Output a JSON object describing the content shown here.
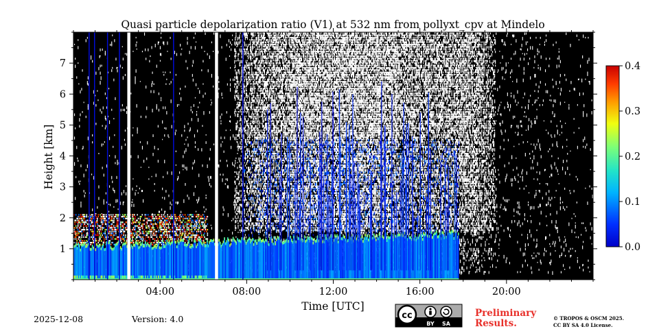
{
  "chart_data": {
    "type": "heatmap",
    "title": "Quasi particle depolarization ratio (V1) at 532 nm from pollyxt_cpv at Mindelo",
    "xlabel": "Time [UTC]",
    "ylabel": "Height [km]",
    "xlim": [
      0,
      24
    ],
    "ylim": [
      0,
      8
    ],
    "x_ticks": [
      {
        "value": 4,
        "label": "04:00"
      },
      {
        "value": 8,
        "label": "08:00"
      },
      {
        "value": 12,
        "label": "12:00"
      },
      {
        "value": 16,
        "label": "16:00"
      },
      {
        "value": 20,
        "label": "20:00"
      }
    ],
    "y_ticks": [
      {
        "value": 1,
        "label": "1"
      },
      {
        "value": 2,
        "label": "2"
      },
      {
        "value": 3,
        "label": "3"
      },
      {
        "value": 4,
        "label": "4"
      },
      {
        "value": 5,
        "label": "5"
      },
      {
        "value": 6,
        "label": "6"
      },
      {
        "value": 7,
        "label": "7"
      }
    ],
    "colorbar": {
      "min": 0.0,
      "max": 0.4,
      "ticks": [
        {
          "value": 0.0,
          "label": "0.0"
        },
        {
          "value": 0.1,
          "label": "0.1"
        },
        {
          "value": 0.2,
          "label": "0.2"
        },
        {
          "value": 0.3,
          "label": "0.3"
        },
        {
          "value": 0.4,
          "label": "0.4"
        }
      ],
      "colormap": "jet"
    },
    "background_color": "#000000",
    "no_signal_gaps_utc": [
      2.55,
      6.6
    ],
    "aerosol_layer": {
      "top_km_start": 1.05,
      "top_km_end": 1.45,
      "end_utc": 17.8,
      "typical_value": 0.08
    },
    "elevated_layer": {
      "start_utc": 0,
      "end_utc": 6.2,
      "base_km": 1.1,
      "top_km": 2.1
    },
    "cloud_region": {
      "start_utc": 7.8,
      "end_utc": 19.5,
      "base_km": 1.5,
      "top_km": 8.0
    }
  },
  "footer": {
    "date": "2025-12-08",
    "version": "Version: 4.0",
    "preliminary_line1": "Preliminary",
    "preliminary_line2": "Results.",
    "copyright_line1": "© TROPOS & OSCM 2025.",
    "copyright_line2": "CC BY SA 4.0 License.",
    "cc_badge": {
      "by_label": "BY",
      "sa_label": "SA"
    }
  }
}
